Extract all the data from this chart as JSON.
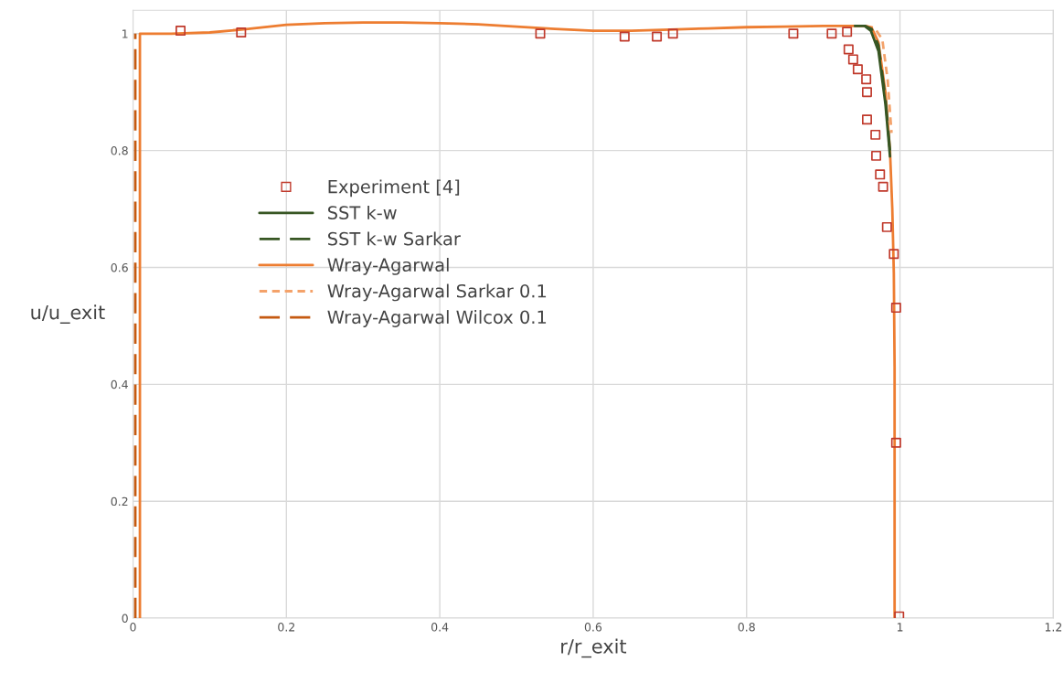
{
  "chart_data": {
    "type": "line",
    "xlabel": "r/r_exit",
    "ylabel": "u/u_exit",
    "xlim": [
      0,
      1.2
    ],
    "xticks": [
      0,
      0.2,
      0.4,
      0.6,
      0.8,
      1,
      1.2
    ],
    "ylim": [
      0,
      1.04
    ],
    "yticks": [
      0,
      0.2,
      0.4,
      0.6,
      0.8,
      1
    ],
    "grid": true,
    "legend": "left",
    "series": [
      {
        "name": "Experiment [4]",
        "type": "scatter",
        "marker": "square",
        "color": "#c0392b",
        "x": [
          0.062,
          0.141,
          0.531,
          0.641,
          0.683,
          0.704,
          0.861,
          0.911,
          0.931,
          0.933,
          0.939,
          0.945,
          0.956,
          0.957,
          0.957,
          0.968,
          0.969,
          0.974,
          0.978,
          0.983,
          0.992,
          0.995,
          0.995,
          0.999
        ],
        "values": [
          1.005,
          1.002,
          1.0,
          0.995,
          0.995,
          1.0,
          1.0,
          1.0,
          1.003,
          0.973,
          0.956,
          0.939,
          0.922,
          0.9,
          0.853,
          0.827,
          0.791,
          0.759,
          0.738,
          0.669,
          0.623,
          0.531,
          0.3,
          0.003
        ]
      },
      {
        "name": "SST k-w",
        "color": "#375623",
        "line_style": "solid",
        "x": [
          0.955,
          0.962,
          0.972,
          0.981,
          0.987
        ],
        "values": [
          1.012,
          1.005,
          0.97,
          0.88,
          0.79
        ]
      },
      {
        "name": "SST k-w Sarkar",
        "color": "#375623",
        "line_style": "dashed",
        "x": [
          0.94,
          0.955,
          0.963,
          0.972,
          0.981,
          0.987
        ],
        "values": [
          1.013,
          1.013,
          1.008,
          0.98,
          0.89,
          0.8
        ]
      },
      {
        "name": "Wray-Agarwal",
        "color": "#ed7d31",
        "line_style": "solid",
        "x": [
          0.009,
          0.009,
          0.05,
          0.1,
          0.15,
          0.2,
          0.25,
          0.3,
          0.35,
          0.4,
          0.45,
          0.5,
          0.55,
          0.6,
          0.65,
          0.7,
          0.75,
          0.8,
          0.85,
          0.9,
          0.94,
          0.955,
          0.963,
          0.972,
          0.981,
          0.987,
          0.99,
          0.992,
          0.993,
          0.993
        ],
        "values": [
          0,
          1.0,
          1.0,
          1.002,
          1.008,
          1.015,
          1.018,
          1.019,
          1.019,
          1.018,
          1.016,
          1.012,
          1.008,
          1.005,
          1.005,
          1.007,
          1.009,
          1.011,
          1.012,
          1.013,
          1.013,
          1.013,
          1.01,
          0.985,
          0.9,
          0.8,
          0.7,
          0.59,
          0.43,
          0
        ]
      },
      {
        "name": "Wray-Agarwal Sarkar 0.1",
        "color": "#f4a26a",
        "line_style": "dotted",
        "x": [
          0.955,
          0.967,
          0.977,
          0.984,
          0.989
        ],
        "values": [
          1.013,
          1.01,
          0.99,
          0.92,
          0.83
        ]
      },
      {
        "name": "Wray-Agarwal Wilcox 0.1",
        "color": "#c55a11",
        "line_style": "dashed",
        "x": [
          0.003,
          0.003
        ],
        "values": [
          0,
          1.0
        ]
      }
    ]
  }
}
